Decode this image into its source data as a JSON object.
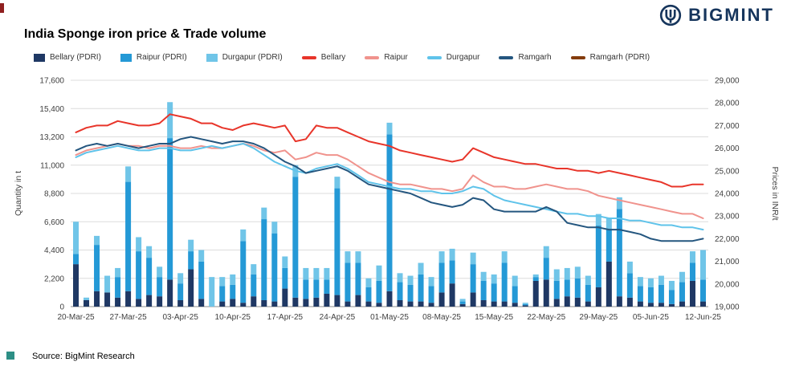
{
  "page": {
    "title": "India Sponge iron price & Trade volume",
    "brand": "BIGMINT",
    "source": "Source: BigMint Research"
  },
  "legend": [
    {
      "label": "Bellary (PDRI)",
      "type": "bar",
      "color": "#1f3864"
    },
    {
      "label": "Raipur (PDRI)",
      "type": "bar",
      "color": "#2499d6"
    },
    {
      "label": "Durgapur (PDRI)",
      "type": "bar",
      "color": "#70c5e8"
    },
    {
      "label": "Bellary",
      "type": "line",
      "color": "#e8352a"
    },
    {
      "label": "Raipur",
      "type": "line",
      "color": "#f0938d"
    },
    {
      "label": "Durgapur",
      "type": "line",
      "color": "#5fc3ea"
    },
    {
      "label": "Ramgarh",
      "type": "line",
      "color": "#24567f"
    },
    {
      "label": "Ramgarh (PDRI)",
      "type": "line",
      "color": "#843c0c"
    }
  ],
  "chart_data": {
    "type": "combo-bar-line",
    "title": "India Sponge iron price & Trade volume",
    "x_tick_every": 5,
    "dates": [
      "20-Mar-25",
      "21-Mar-25",
      "24-Mar-25",
      "25-Mar-25",
      "26-Mar-25",
      "27-Mar-25",
      "28-Mar-25",
      "31-Mar-25",
      "01-Apr-25",
      "02-Apr-25",
      "03-Apr-25",
      "04-Apr-25",
      "07-Apr-25",
      "08-Apr-25",
      "09-Apr-25",
      "10-Apr-25",
      "11-Apr-25",
      "14-Apr-25",
      "15-Apr-25",
      "16-Apr-25",
      "17-Apr-25",
      "18-Apr-25",
      "21-Apr-25",
      "22-Apr-25",
      "23-Apr-25",
      "24-Apr-25",
      "25-Apr-25",
      "28-Apr-25",
      "29-Apr-25",
      "30-Apr-25",
      "01-May-25",
      "02-May-25",
      "05-May-25",
      "06-May-25",
      "07-May-25",
      "08-May-25",
      "09-May-25",
      "12-May-25",
      "13-May-25",
      "14-May-25",
      "15-May-25",
      "16-May-25",
      "19-May-25",
      "20-May-25",
      "21-May-25",
      "22-May-25",
      "23-May-25",
      "26-May-25",
      "27-May-25",
      "28-May-25",
      "29-May-25",
      "30-May-25",
      "02-Jun-25",
      "03-Jun-25",
      "04-Jun-25",
      "05-Jun-25",
      "06-Jun-25",
      "09-Jun-25",
      "10-Jun-25",
      "11-Jun-25",
      "12-Jun-25"
    ],
    "axes": {
      "left": {
        "label": "Quantity in t",
        "min": 0,
        "max": 17600,
        "step": 2200
      },
      "right": {
        "label": "Prices in INR/t",
        "min": 19000,
        "max": 29000,
        "step": 1000
      }
    },
    "bar_series": [
      {
        "name": "Bellary (PDRI)",
        "color": "#1f3864",
        "values": [
          3300,
          500,
          1200,
          1100,
          700,
          1200,
          600,
          900,
          800,
          2100,
          500,
          2900,
          600,
          0,
          400,
          600,
          300,
          800,
          500,
          400,
          1400,
          700,
          600,
          700,
          1000,
          900,
          400,
          900,
          400,
          300,
          1200,
          500,
          400,
          400,
          300,
          1100,
          1800,
          200,
          1100,
          500,
          400,
          400,
          300,
          100,
          2000,
          2100,
          600,
          800,
          700,
          400,
          1500,
          3500,
          800,
          700,
          400,
          300,
          300,
          200,
          400,
          2000,
          400
        ]
      },
      {
        "name": "Raipur (PDRI)",
        "color": "#2499d6",
        "values": [
          800,
          0,
          3600,
          0,
          1600,
          8500,
          3700,
          2900,
          1500,
          11000,
          1300,
          1400,
          2900,
          0,
          1200,
          1100,
          4800,
          1700,
          6300,
          5300,
          1600,
          9400,
          1500,
          1400,
          1100,
          8300,
          3000,
          2500,
          1100,
          1700,
          12200,
          1400,
          1300,
          2100,
          1300,
          2300,
          1800,
          200,
          2200,
          1500,
          1400,
          3000,
          1300,
          100,
          300,
          1700,
          1400,
          1300,
          1500,
          1300,
          4800,
          2500,
          6800,
          1900,
          1200,
          1200,
          1400,
          1100,
          1500,
          1400,
          1700
        ]
      },
      {
        "name": "Durgapur (PDRI)",
        "color": "#70c5e8",
        "values": [
          2500,
          200,
          700,
          1300,
          700,
          1200,
          1100,
          900,
          800,
          2800,
          800,
          900,
          900,
          2300,
          700,
          800,
          900,
          800,
          900,
          900,
          900,
          900,
          900,
          900,
          900,
          900,
          900,
          900,
          700,
          1200,
          900,
          700,
          700,
          900,
          700,
          900,
          900,
          200,
          900,
          700,
          700,
          900,
          800,
          100,
          200,
          900,
          900,
          900,
          900,
          700,
          900,
          900,
          900,
          900,
          700,
          700,
          700,
          700,
          800,
          900,
          2300
        ]
      }
    ],
    "line_series": [
      {
        "name": "Bellary",
        "color": "#e8352a",
        "values": [
          26700,
          26900,
          27000,
          27000,
          27200,
          27100,
          27000,
          27000,
          27100,
          27500,
          27400,
          27300,
          27100,
          27100,
          26900,
          26800,
          27000,
          27100,
          27000,
          26900,
          27000,
          26300,
          26400,
          27000,
          26900,
          26900,
          26700,
          26500,
          26300,
          26200,
          26100,
          25900,
          25800,
          25700,
          25600,
          25500,
          25400,
          25500,
          26000,
          25800,
          25600,
          25500,
          25400,
          25300,
          25300,
          25200,
          25100,
          25100,
          25000,
          25000,
          24900,
          25000,
          24900,
          24800,
          24700,
          24600,
          24500,
          24300,
          24300,
          24400,
          24400
        ]
      },
      {
        "name": "Raipur",
        "color": "#f0938d",
        "values": [
          25700,
          25900,
          26000,
          26100,
          26200,
          26100,
          26100,
          26000,
          26100,
          26100,
          26000,
          26000,
          26100,
          26000,
          26000,
          26100,
          26200,
          26100,
          25900,
          25800,
          25900,
          25500,
          25600,
          25800,
          25700,
          25700,
          25500,
          25200,
          24900,
          24700,
          24500,
          24400,
          24400,
          24300,
          24200,
          24200,
          24100,
          24200,
          24800,
          24500,
          24300,
          24300,
          24200,
          24200,
          24300,
          24400,
          24300,
          24200,
          24200,
          24100,
          23900,
          23800,
          23700,
          23600,
          23500,
          23400,
          23300,
          23200,
          23100,
          23100,
          22900
        ]
      },
      {
        "name": "Durgapur",
        "color": "#5fc3ea",
        "values": [
          25600,
          25800,
          25900,
          26000,
          26100,
          26000,
          25900,
          25900,
          26000,
          26000,
          25900,
          25900,
          26000,
          26100,
          26000,
          26100,
          26200,
          26000,
          25700,
          25400,
          25200,
          25000,
          24900,
          25100,
          25200,
          25300,
          25100,
          24800,
          24500,
          24400,
          24300,
          24200,
          24200,
          24100,
          24100,
          24000,
          24000,
          24100,
          24300,
          24200,
          23900,
          23700,
          23600,
          23500,
          23400,
          23300,
          23200,
          23100,
          23100,
          23000,
          23000,
          22900,
          22900,
          22800,
          22800,
          22700,
          22600,
          22600,
          22500,
          22500,
          22400
        ]
      },
      {
        "name": "Ramgarh",
        "color": "#24567f",
        "values": [
          25900,
          26100,
          26200,
          26100,
          26200,
          26100,
          26000,
          26100,
          26200,
          26200,
          26400,
          26500,
          26400,
          26300,
          26200,
          26300,
          26300,
          26200,
          26000,
          25700,
          25400,
          25200,
          24900,
          25000,
          25100,
          25200,
          25000,
          24700,
          24400,
          24300,
          24200,
          24100,
          24000,
          23800,
          23600,
          23500,
          23400,
          23500,
          23800,
          23700,
          23300,
          23200,
          23200,
          23200,
          23200,
          23400,
          23200,
          22700,
          22600,
          22500,
          22500,
          22400,
          22400,
          22300,
          22200,
          22000,
          21900,
          21900,
          21900,
          21900,
          22000
        ]
      },
      {
        "name": "Ramgarh (PDRI)",
        "color": "#843c0c",
        "values": []
      }
    ]
  }
}
